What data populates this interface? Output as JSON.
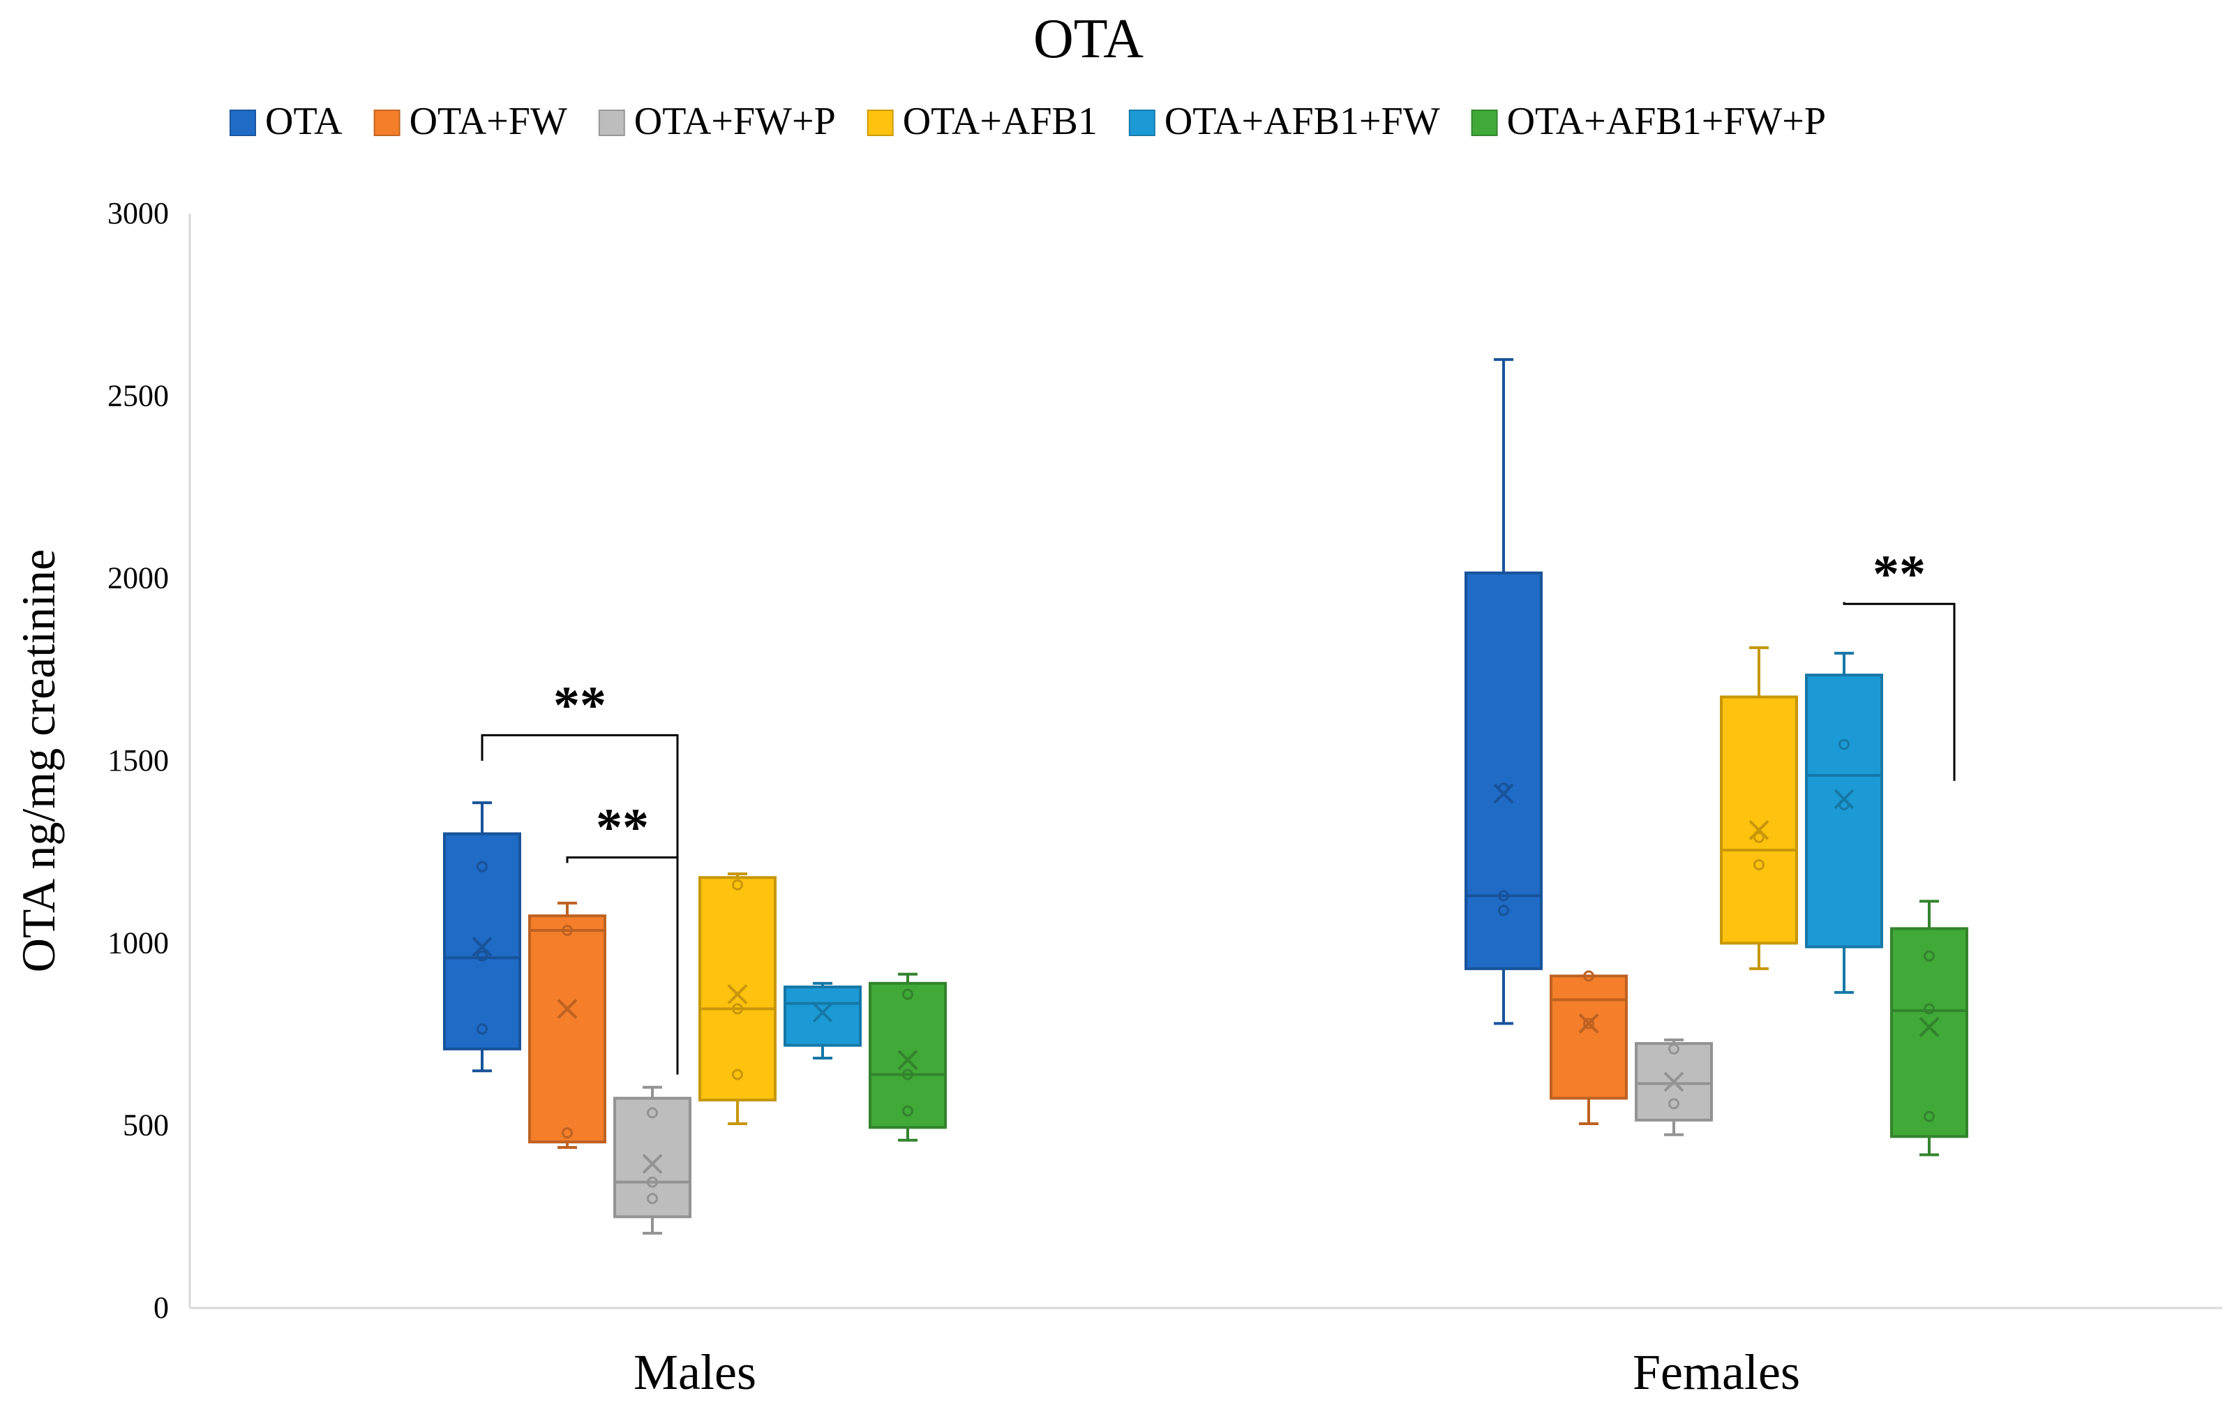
{
  "chart_data": {
    "type": "box",
    "title": "OTA",
    "xlabel": "",
    "ylabel": "OTA ng/mg creatinine",
    "ylim": [
      0,
      3000
    ],
    "yticks": [
      0,
      500,
      1000,
      1500,
      2000,
      2500,
      3000
    ],
    "categories": [
      "Males",
      "Females"
    ],
    "grid": false,
    "legend_position": "top",
    "series": [
      {
        "name": "OTA",
        "color": "#1F6BC6",
        "boxes": [
          {
            "min": 650,
            "q1": 710,
            "median": 960,
            "q3": 1300,
            "max": 1385,
            "mean": 990,
            "points": [
              1210,
              965,
              765
            ]
          },
          {
            "min": 780,
            "q1": 930,
            "median": 1130,
            "q3": 2015,
            "max": 2600,
            "mean": 1410,
            "points": [
              1425,
              1130,
              1090
            ]
          }
        ]
      },
      {
        "name": "OTA+FW",
        "color": "#F47E2A",
        "boxes": [
          {
            "min": 440,
            "q1": 455,
            "median": 1035,
            "q3": 1075,
            "max": 1110,
            "mean": 820,
            "points": [
              1035,
              480
            ]
          },
          {
            "min": 505,
            "q1": 575,
            "median": 845,
            "q3": 910,
            "max": 910,
            "mean": 780,
            "points": [
              910,
              780
            ]
          }
        ]
      },
      {
        "name": "OTA+FW+P",
        "color": "#BDBDBD",
        "boxes": [
          {
            "min": 205,
            "q1": 250,
            "median": 345,
            "q3": 575,
            "max": 605,
            "mean": 395,
            "points": [
              535,
              345,
              300
            ]
          },
          {
            "min": 475,
            "q1": 515,
            "median": 615,
            "q3": 725,
            "max": 735,
            "mean": 620,
            "points": [
              710,
              560
            ]
          }
        ]
      },
      {
        "name": "OTA+AFB1",
        "color": "#FFC20E",
        "boxes": [
          {
            "min": 505,
            "q1": 570,
            "median": 820,
            "q3": 1180,
            "max": 1190,
            "mean": 860,
            "points": [
              1160,
              820,
              640
            ]
          },
          {
            "min": 930,
            "q1": 1000,
            "median": 1255,
            "q3": 1675,
            "max": 1810,
            "mean": 1310,
            "points": [
              1290,
              1215
            ]
          }
        ]
      },
      {
        "name": "OTA+AFB1+FW",
        "color": "#1C9AD6",
        "boxes": [
          {
            "min": 685,
            "q1": 720,
            "median": 835,
            "q3": 880,
            "max": 890,
            "mean": 810,
            "points": []
          },
          {
            "min": 865,
            "q1": 990,
            "median": 1460,
            "q3": 1735,
            "max": 1795,
            "mean": 1395,
            "points": [
              1545,
              1380
            ]
          }
        ]
      },
      {
        "name": "OTA+AFB1+FW+P",
        "color": "#40A938",
        "boxes": [
          {
            "min": 460,
            "q1": 495,
            "median": 640,
            "q3": 890,
            "max": 915,
            "mean": 680,
            "points": [
              860,
              640,
              540
            ]
          },
          {
            "min": 420,
            "q1": 470,
            "median": 815,
            "q3": 1040,
            "max": 1115,
            "mean": 770,
            "points": [
              965,
              820,
              525
            ]
          }
        ]
      }
    ],
    "annotations": [
      {
        "label": "**",
        "group": "Males",
        "from": "OTA",
        "to": "OTA+FW+P",
        "left_end": 1500,
        "right_end": 640,
        "bracket_y": 1570
      },
      {
        "label": "**",
        "group": "Males",
        "from": "OTA+FW",
        "to": "OTA+FW+P",
        "left_end": 1220,
        "right_end": 750,
        "bracket_y": 1235
      },
      {
        "label": "**",
        "group": "Females",
        "from": "OTA+AFB1+FW",
        "to": "OTA+AFB1+FW+P",
        "left_end": 1935,
        "right_end": 1445,
        "bracket_y": 1930
      }
    ]
  }
}
